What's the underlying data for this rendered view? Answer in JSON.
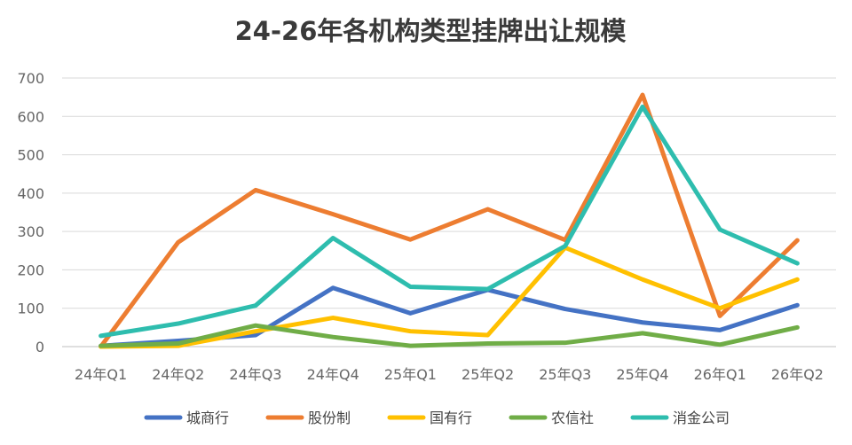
{
  "chart_data": {
    "type": "line",
    "title": "24-26年各机构类型挂牌出让规模",
    "xlabel": "",
    "ylabel": "",
    "categories": [
      "24年Q1",
      "24年Q2",
      "24年Q3",
      "24年Q4",
      "25年Q1",
      "25年Q2",
      "25年Q3",
      "25年Q4",
      "26年Q1",
      "26年Q2"
    ],
    "ylim": [
      0,
      700
    ],
    "yticks": [
      0,
      100,
      200,
      300,
      400,
      500,
      600,
      700
    ],
    "grid": true,
    "legend_position": "bottom",
    "series": [
      {
        "name": "城商行",
        "color": "#4472C4",
        "values": [
          2,
          15,
          30,
          153,
          87,
          148,
          98,
          63,
          43,
          108
        ]
      },
      {
        "name": "股份制",
        "color": "#ED7D31",
        "values": [
          0,
          272,
          408,
          345,
          279,
          358,
          278,
          656,
          80,
          277
        ]
      },
      {
        "name": "国有行",
        "color": "#FFC000",
        "values": [
          0,
          2,
          40,
          75,
          40,
          30,
          258,
          175,
          100,
          175
        ]
      },
      {
        "name": "农信社",
        "color": "#70AD47",
        "values": [
          2,
          8,
          55,
          25,
          2,
          8,
          10,
          35,
          5,
          50
        ]
      },
      {
        "name": "消金公司",
        "color": "#2EBDAE",
        "values": [
          28,
          60,
          107,
          283,
          156,
          150,
          262,
          625,
          305,
          217
        ]
      }
    ]
  }
}
